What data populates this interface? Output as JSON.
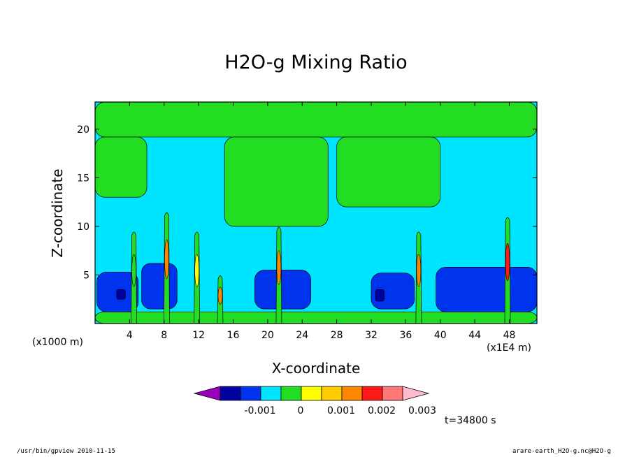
{
  "chart_data": {
    "type": "heatmap",
    "title": "H2O-g Mixing Ratio",
    "xlabel": "X-coordinate",
    "ylabel": "Z-coordinate",
    "x_unit_left": "(x1000 m)",
    "x_unit_right": "(x1E4 m)",
    "x_ticks": [
      "4",
      "8",
      "12",
      "16",
      "20",
      "24",
      "28",
      "32",
      "36",
      "40",
      "44",
      "48"
    ],
    "y_ticks": [
      "5",
      "10",
      "15",
      "20"
    ],
    "xlim": [
      0,
      51.2
    ],
    "ylim": [
      0,
      22.8
    ],
    "colorbar": {
      "colors": [
        "#9900bb",
        "#0000a0",
        "#0033ee",
        "#00e5ff",
        "#22dd22",
        "#ffff00",
        "#ffcc00",
        "#ff8800",
        "#ff1a1a",
        "#ff7777",
        "#ffbbcc"
      ],
      "labels": [
        "-0.001",
        "0",
        "0.001",
        "0.002",
        "0.003"
      ]
    },
    "time_label": "t=34800 s",
    "background_color": "#00e5ff",
    "regions": [
      {
        "level": "green",
        "x": [
          0,
          51.2
        ],
        "y": [
          19.2,
          22.8
        ]
      },
      {
        "level": "green",
        "x": [
          0,
          6
        ],
        "y": [
          13,
          19.2
        ]
      },
      {
        "level": "green",
        "x": [
          15,
          27
        ],
        "y": [
          10,
          19.2
        ]
      },
      {
        "level": "green",
        "x": [
          28,
          40
        ],
        "y": [
          12,
          19.2
        ]
      },
      {
        "level": "green",
        "x": [
          0,
          51.2
        ],
        "y": [
          0,
          1.2
        ]
      },
      {
        "level": "blue",
        "x": [
          0.2,
          5
        ],
        "y": [
          1.2,
          5.3
        ]
      },
      {
        "level": "blue",
        "x": [
          5.4,
          9.5
        ],
        "y": [
          1.5,
          6.2
        ]
      },
      {
        "level": "blue",
        "x": [
          18.5,
          25
        ],
        "y": [
          1.5,
          5.5
        ]
      },
      {
        "level": "blue",
        "x": [
          32,
          37
        ],
        "y": [
          1.5,
          5.2
        ]
      },
      {
        "level": "blue",
        "x": [
          39.5,
          51.2
        ],
        "y": [
          1.2,
          5.8
        ]
      },
      {
        "level": "darkblue",
        "x": [
          2.5,
          3.5
        ],
        "y": [
          2.5,
          3.5
        ]
      },
      {
        "level": "darkblue",
        "x": [
          32.5,
          33.5
        ],
        "y": [
          2.3,
          3.5
        ]
      }
    ],
    "plumes": [
      {
        "x": 4.5,
        "top": 9.5,
        "peak": "green"
      },
      {
        "x": 8.3,
        "top": 11.5,
        "peak": "orange"
      },
      {
        "x": 11.8,
        "top": 9.5,
        "peak": "yellow"
      },
      {
        "x": 14.5,
        "top": 5,
        "peak": "orange"
      },
      {
        "x": 21.3,
        "top": 10,
        "peak": "orange"
      },
      {
        "x": 37.5,
        "top": 9.5,
        "peak": "orange"
      },
      {
        "x": 47.8,
        "top": 11,
        "peak": "red"
      }
    ]
  },
  "footer": {
    "left": "/usr/bin/gpview   2010-11-15",
    "right": "arare-earth_H2O-g.nc@H2O-g"
  }
}
